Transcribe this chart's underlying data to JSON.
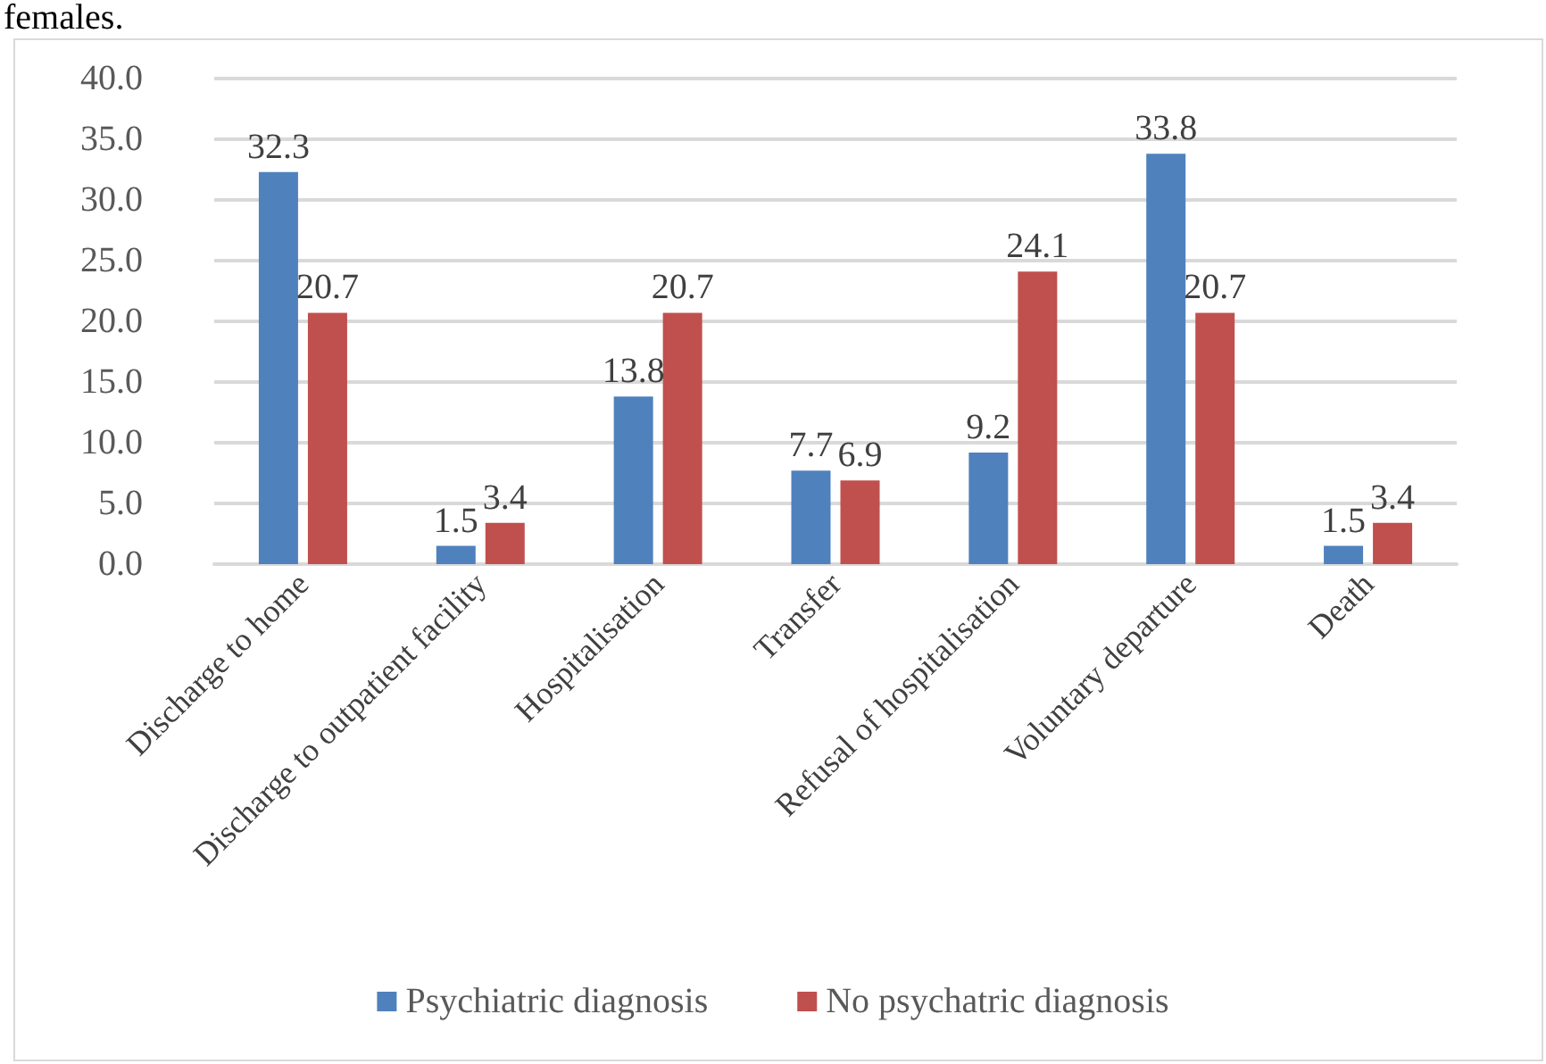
{
  "chart_data": {
    "type": "bar",
    "annotations": [
      "females."
    ],
    "categories": [
      "Discharge to home",
      "Discharge to outpatient facility",
      "Hospitalisation",
      "Transfer",
      "Refusal of hospitalisation",
      "Voluntary departure",
      "Death"
    ],
    "series": [
      {
        "name": "Psychiatric diagnosis",
        "color": "#4f81bd",
        "values": [
          32.3,
          1.5,
          13.8,
          7.7,
          9.2,
          33.8,
          1.5
        ]
      },
      {
        "name": "No psychatric diagnosis",
        "color": "#c0504d",
        "values": [
          20.7,
          3.4,
          20.7,
          6.9,
          24.1,
          20.7,
          3.4
        ]
      }
    ],
    "ylim": [
      0,
      40
    ],
    "yticks": [
      {
        "value": 0,
        "label": "0.0"
      },
      {
        "value": 5,
        "label": "5.0"
      },
      {
        "value": 10,
        "label": "10.0"
      },
      {
        "value": 15,
        "label": "15.0"
      },
      {
        "value": 20,
        "label": "20.0"
      },
      {
        "value": 25,
        "label": "25.0"
      },
      {
        "value": 30,
        "label": "30.0"
      },
      {
        "value": 35,
        "label": "35.0"
      },
      {
        "value": 40,
        "label": "40.0"
      }
    ],
    "grid": "y",
    "legend": "bottom",
    "data_labels": true
  }
}
